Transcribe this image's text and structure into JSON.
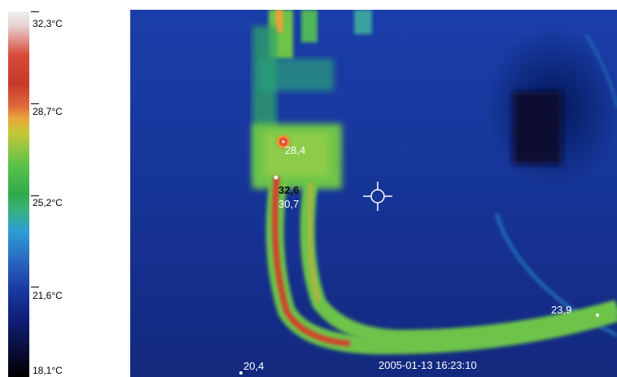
{
  "scale": {
    "labels": [
      "32,3°C",
      "28,7°C",
      "25,2°C",
      "21,6°C",
      "18,1°C"
    ],
    "colors": [
      "#d84a3a",
      "#e9a23a",
      "#2faa4a",
      "#2f9ed4",
      "#101f7a",
      "#000000"
    ]
  },
  "thermal": {
    "spot_labels": [
      "28,4",
      "32,6",
      "30,7",
      "23,9",
      "20,4"
    ],
    "timestamp": "2005-01-13 16:23:10"
  }
}
